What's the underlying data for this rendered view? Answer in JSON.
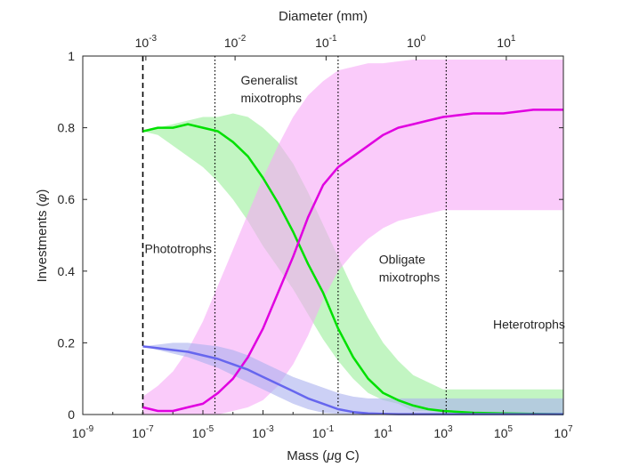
{
  "chart_data": {
    "type": "line",
    "title": "",
    "xlabel_parts": [
      "Mass (",
      "μ",
      "g C)"
    ],
    "ylabel_parts": [
      "Investments (",
      "φ",
      ")"
    ],
    "top_axis_label": "Diameter (mm)",
    "x_scale": "log10",
    "xlim_exponent": [
      -9,
      7
    ],
    "ylim": [
      0,
      1
    ],
    "x_ticks": [
      {
        "base": "10",
        "exp": "-9",
        "value_exp": -9
      },
      {
        "base": "10",
        "exp": "-7",
        "value_exp": -7
      },
      {
        "base": "10",
        "exp": "-5",
        "value_exp": -5
      },
      {
        "base": "10",
        "exp": "-3",
        "value_exp": -3
      },
      {
        "base": "10",
        "exp": "-1",
        "value_exp": -1
      },
      {
        "base": "10",
        "exp": "1",
        "value_exp": 1
      },
      {
        "base": "10",
        "exp": "3",
        "value_exp": 3
      },
      {
        "base": "10",
        "exp": "5",
        "value_exp": 5
      },
      {
        "base": "10",
        "exp": "7",
        "value_exp": 7
      }
    ],
    "top_ticks": [
      {
        "base": "10",
        "exp": "-3",
        "mass_exp": -6.9
      },
      {
        "base": "10",
        "exp": "-2",
        "mass_exp": -3.93
      },
      {
        "base": "10",
        "exp": "-1",
        "mass_exp": -0.9
      },
      {
        "base": "10",
        "exp": "0",
        "mass_exp": 2.1
      },
      {
        "base": "10",
        "exp": "1",
        "mass_exp": 5.1
      }
    ],
    "y_ticks": [
      "0",
      "0.2",
      "0.4",
      "0.6",
      "0.8",
      "1"
    ],
    "region_lines": [
      {
        "mass_exp": -7.0,
        "style": "dashed"
      },
      {
        "mass_exp": -4.6,
        "style": "dotted"
      },
      {
        "mass_exp": -0.5,
        "style": "dotted"
      },
      {
        "mass_exp": 3.1,
        "style": "dotted"
      }
    ],
    "region_labels": [
      {
        "lines": [
          "Phototrophs"
        ],
        "mass_exp": -7.0,
        "y": 0.45
      },
      {
        "lines": [
          "Generalist",
          "mixotrophs"
        ],
        "mass_exp": -3.8,
        "y": 0.92
      },
      {
        "lines": [
          "Obligate",
          "mixotrophs"
        ],
        "mass_exp": 0.8,
        "y": 0.42
      },
      {
        "lines": [
          "Heterotrophs"
        ],
        "mass_exp": 4.6,
        "y": 0.24
      }
    ],
    "series": [
      {
        "name": "green",
        "color": "#00e000",
        "band_color": "#99ee99",
        "x_exp": [
          -7,
          -6.5,
          -6,
          -5.5,
          -5,
          -4.5,
          -4,
          -3.5,
          -3,
          -2.5,
          -2,
          -1.5,
          -1,
          -0.5,
          0,
          0.5,
          1,
          1.5,
          2,
          2.5,
          3,
          4,
          5,
          6,
          7
        ],
        "y": [
          0.79,
          0.8,
          0.8,
          0.81,
          0.8,
          0.79,
          0.76,
          0.72,
          0.66,
          0.59,
          0.51,
          0.42,
          0.34,
          0.24,
          0.16,
          0.1,
          0.06,
          0.04,
          0.025,
          0.015,
          0.01,
          0.005,
          0.003,
          0.002,
          0.001
        ],
        "upper": [
          0.79,
          0.8,
          0.81,
          0.82,
          0.83,
          0.83,
          0.84,
          0.83,
          0.8,
          0.76,
          0.7,
          0.62,
          0.53,
          0.44,
          0.35,
          0.27,
          0.2,
          0.15,
          0.11,
          0.09,
          0.07,
          0.07,
          0.07,
          0.07,
          0.07
        ],
        "lower": [
          0.79,
          0.78,
          0.75,
          0.72,
          0.69,
          0.65,
          0.6,
          0.54,
          0.47,
          0.41,
          0.35,
          0.28,
          0.21,
          0.15,
          0.1,
          0.06,
          0.04,
          0.03,
          0.01,
          0.01,
          0.005,
          0.003,
          0.003,
          0.002,
          0.001
        ]
      },
      {
        "name": "magenta",
        "color": "#e000e0",
        "band_color": "#f7a8f7",
        "x_exp": [
          -7,
          -6.5,
          -6,
          -5.5,
          -5,
          -4.5,
          -4,
          -3.5,
          -3,
          -2.5,
          -2,
          -1.5,
          -1,
          -0.5,
          0,
          0.5,
          1,
          1.5,
          2,
          2.5,
          3,
          4,
          5,
          6,
          7
        ],
        "y": [
          0.02,
          0.01,
          0.01,
          0.02,
          0.03,
          0.06,
          0.1,
          0.16,
          0.24,
          0.34,
          0.44,
          0.55,
          0.64,
          0.69,
          0.72,
          0.75,
          0.78,
          0.8,
          0.81,
          0.82,
          0.83,
          0.84,
          0.84,
          0.85,
          0.85
        ],
        "upper": [
          0.05,
          0.08,
          0.12,
          0.18,
          0.26,
          0.36,
          0.46,
          0.56,
          0.66,
          0.75,
          0.83,
          0.89,
          0.93,
          0.96,
          0.97,
          0.98,
          0.98,
          0.985,
          0.99,
          0.99,
          0.99,
          0.99,
          0.99,
          0.99,
          0.99
        ],
        "lower": [
          0.0,
          0.0,
          0.0,
          0.0,
          0.0,
          0.0,
          0.01,
          0.02,
          0.04,
          0.08,
          0.14,
          0.22,
          0.32,
          0.4,
          0.45,
          0.49,
          0.52,
          0.54,
          0.55,
          0.56,
          0.57,
          0.57,
          0.57,
          0.57,
          0.57
        ]
      },
      {
        "name": "blue",
        "color": "#6666ee",
        "band_color": "#aab0ee",
        "x_exp": [
          -7,
          -6.5,
          -6,
          -5.5,
          -5,
          -4.5,
          -4,
          -3.5,
          -3,
          -2.5,
          -2,
          -1.5,
          -1,
          -0.5,
          0,
          0.5,
          1,
          1.5,
          2,
          2.5,
          3,
          4,
          5,
          6,
          7
        ],
        "y": [
          0.19,
          0.185,
          0.18,
          0.175,
          0.165,
          0.155,
          0.14,
          0.125,
          0.105,
          0.085,
          0.065,
          0.045,
          0.03,
          0.015,
          0.007,
          0.003,
          0.002,
          0.001,
          0.001,
          0.001,
          0.001,
          0.001,
          0.001,
          0.001,
          0.001
        ],
        "upper": [
          0.19,
          0.195,
          0.2,
          0.2,
          0.195,
          0.19,
          0.18,
          0.165,
          0.145,
          0.125,
          0.105,
          0.09,
          0.075,
          0.06,
          0.05,
          0.045,
          0.045,
          0.045,
          0.045,
          0.045,
          0.045,
          0.045,
          0.045,
          0.045,
          0.045
        ],
        "lower": [
          0.19,
          0.18,
          0.17,
          0.16,
          0.145,
          0.13,
          0.11,
          0.09,
          0.07,
          0.05,
          0.03,
          0.015,
          0.005,
          0.002,
          0.001,
          0.0,
          0.0,
          0.0,
          0.0,
          0.0,
          0.0,
          0.0,
          0.0,
          0.0,
          0.0
        ]
      }
    ]
  }
}
